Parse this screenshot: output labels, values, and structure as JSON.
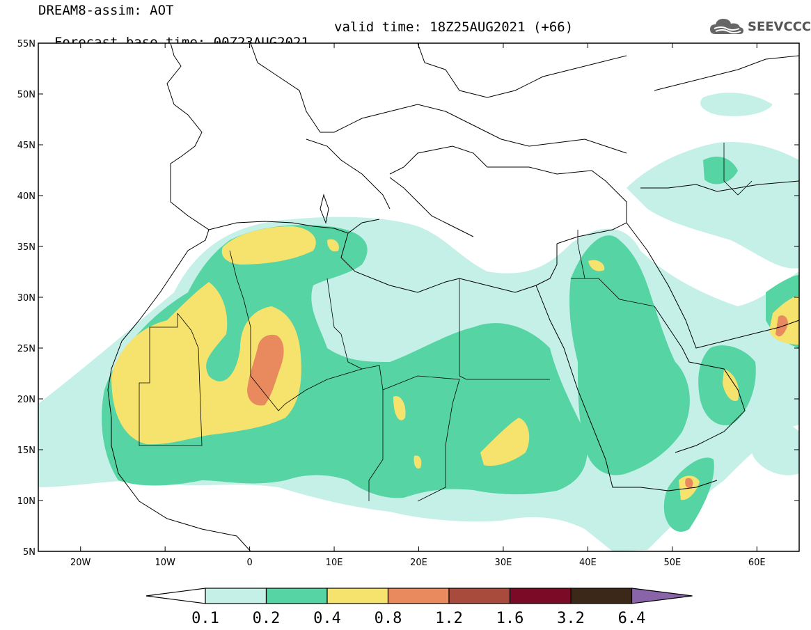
{
  "header": {
    "line1": "DREAM8-assim: AOT",
    "line2_left": "Forecast base time: 00Z23AUG2021",
    "line2_right": "valid time: 18Z25AUG2021 (+66)"
  },
  "logo": {
    "text": "SEEVCCC",
    "icon": "cloud-icon"
  },
  "map": {
    "region": {
      "lon_range": [
        -25,
        65
      ],
      "lat_range": [
        5,
        55
      ]
    },
    "lat_ticks": [
      {
        "value": 55,
        "label": "55N"
      },
      {
        "value": 50,
        "label": "50N"
      },
      {
        "value": 45,
        "label": "45N"
      },
      {
        "value": 40,
        "label": "40N"
      },
      {
        "value": 35,
        "label": "35N"
      },
      {
        "value": 30,
        "label": "30N"
      },
      {
        "value": 25,
        "label": "25N"
      },
      {
        "value": 20,
        "label": "20N"
      },
      {
        "value": 15,
        "label": "15N"
      },
      {
        "value": 10,
        "label": "10N"
      },
      {
        "value": 5,
        "label": "5N"
      }
    ],
    "lon_ticks": [
      {
        "value": -20,
        "label": "20W"
      },
      {
        "value": -10,
        "label": "10W"
      },
      {
        "value": 0,
        "label": "0"
      },
      {
        "value": 10,
        "label": "10E"
      },
      {
        "value": 20,
        "label": "20E"
      },
      {
        "value": 30,
        "label": "30E"
      },
      {
        "value": 40,
        "label": "40E"
      },
      {
        "value": 50,
        "label": "50E"
      },
      {
        "value": 60,
        "label": "60E"
      }
    ]
  },
  "colorbar": {
    "levels": [
      "0.1",
      "0.2",
      "0.4",
      "0.8",
      "1.2",
      "1.6",
      "3.2",
      "6.4"
    ],
    "colors": [
      "#ffffff",
      "#c4f0e8",
      "#56d4a4",
      "#f6e36e",
      "#e88a5e",
      "#a84a3c",
      "#7a0a26",
      "#3c2818",
      "#8a64a8"
    ]
  }
}
